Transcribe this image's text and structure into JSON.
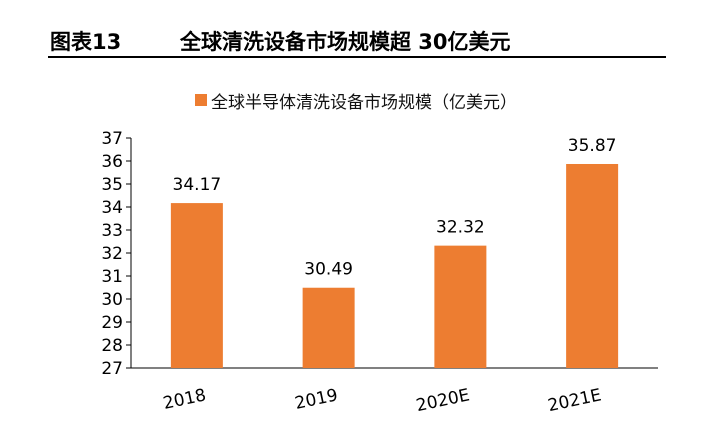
{
  "figure_number": "图表13",
  "figure_title": "全球清洗设备市场规模超 30亿美元",
  "colors": {
    "bar": "#ED7D31",
    "axis": "#000000",
    "text": "#000000"
  },
  "chart_data": {
    "type": "bar",
    "categories": [
      "2018",
      "2019",
      "2020E",
      "2021E"
    ],
    "series": [
      {
        "name": "全球半导体清洗设备市场规模（亿美元）",
        "values": [
          34.17,
          30.49,
          32.32,
          35.87
        ]
      }
    ],
    "data_labels": [
      "34.17",
      "30.49",
      "32.32",
      "35.87"
    ],
    "ylim": [
      27,
      37
    ],
    "yticks": [
      "27",
      "28",
      "29",
      "30",
      "31",
      "32",
      "33",
      "34",
      "35",
      "36",
      "37"
    ],
    "legend_position": "top",
    "grid": false,
    "xlabel": "",
    "ylabel": ""
  }
}
